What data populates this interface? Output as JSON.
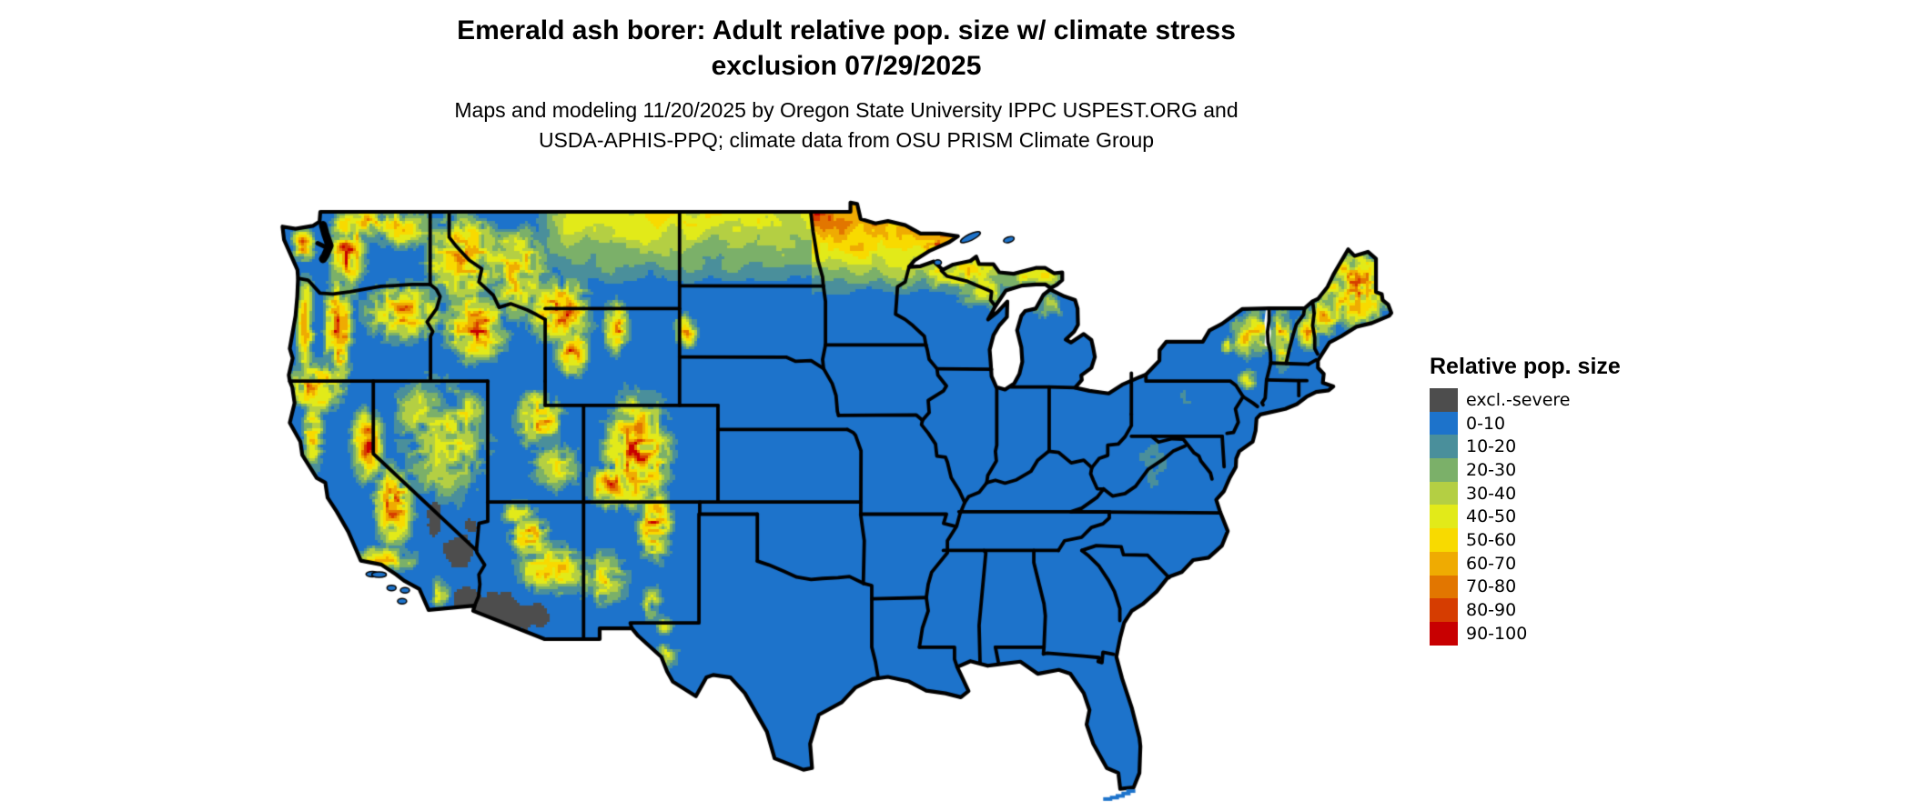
{
  "header": {
    "title_line1": "Emerald ash borer: Adult relative pop. size w/ climate stress",
    "title_line2": "exclusion 07/29/2025",
    "subtitle_line1": "Maps and modeling 11/20/2025 by Oregon State University IPPC USPEST.ORG and",
    "subtitle_line2": "USDA-APHIS-PPQ; climate data from OSU PRISM Climate Group"
  },
  "legend": {
    "title": "Relative pop. size",
    "items": [
      {
        "label": "excl.-severe",
        "color": "#4d4d4d"
      },
      {
        "label": "0-10",
        "color": "#1d73cb"
      },
      {
        "label": "10-20",
        "color": "#4a8f9b"
      },
      {
        "label": "20-30",
        "color": "#7bb069"
      },
      {
        "label": "30-40",
        "color": "#b4cf43"
      },
      {
        "label": "40-50",
        "color": "#e2ea19"
      },
      {
        "label": "50-60",
        "color": "#f8da00"
      },
      {
        "label": "60-70",
        "color": "#efab02"
      },
      {
        "label": "70-80",
        "color": "#e27600"
      },
      {
        "label": "80-90",
        "color": "#d63d01"
      },
      {
        "label": "90-100",
        "color": "#c80001"
      }
    ]
  },
  "map": {
    "base_color": "#1d73cb",
    "border_color": "#000000",
    "water_color": "#ffffff",
    "exclusion_color": "#4d4d4d"
  }
}
